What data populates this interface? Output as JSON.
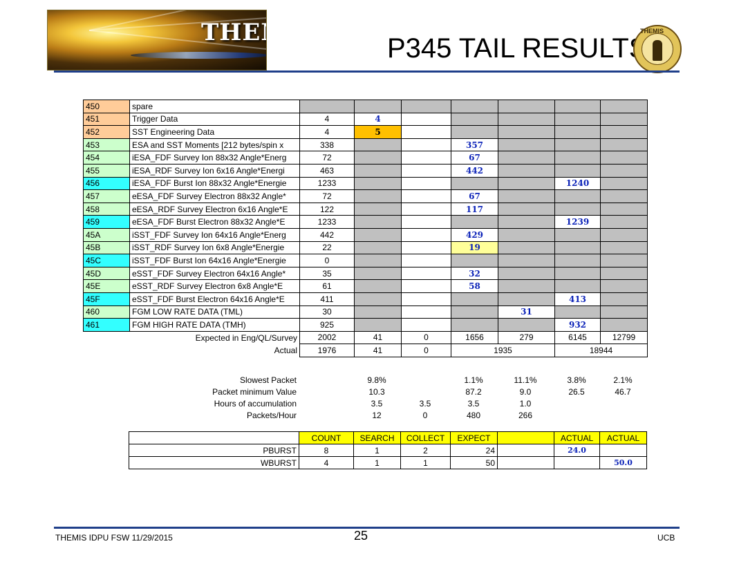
{
  "slide": {
    "logo_text": "THEMIS",
    "title": "P345 TAIL RESULTS",
    "seal_text": "THEMIS",
    "footer_left": "THEMIS IDPU FSW 11/29/2015",
    "page_number": "25",
    "footer_right": "UCB"
  },
  "colors": {
    "id_orange": "#ffcc99",
    "id_green": "#ccffcc",
    "id_cyan": "#33ffff",
    "gray_cell": "#c0c0c0",
    "value_blue": "#0b22b8",
    "highlight_gold": "#ffc000",
    "highlight_light_yellow": "#ffff99",
    "header_yellow": "#ffff00",
    "rule_blue": "#1f3f8a"
  },
  "packet_rows": [
    {
      "id": "450",
      "desc": "spare",
      "expected": "",
      "c1": "",
      "c2": "",
      "c3": "",
      "c4": "",
      "c5": "",
      "c6": ""
    },
    {
      "id": "451",
      "desc": "Trigger Data",
      "expected": "4",
      "c1": "4",
      "c2": "",
      "c3": "",
      "c4": "",
      "c5": "",
      "c6": ""
    },
    {
      "id": "452",
      "desc": "SST Engineering Data",
      "expected": "4",
      "c1": "5",
      "c2": "",
      "c3": "",
      "c4": "",
      "c5": "",
      "c6": ""
    },
    {
      "id": "453",
      "desc": "ESA and SST Moments [212 bytes/spin x",
      "expected": "338",
      "c1": "",
      "c2": "",
      "c3": "357",
      "c4": "",
      "c5": "",
      "c6": ""
    },
    {
      "id": "454",
      "desc": "iESA_FDF Survey Ion 88x32 Angle*Energ",
      "expected": "72",
      "c1": "",
      "c2": "",
      "c3": "67",
      "c4": "",
      "c5": "",
      "c6": ""
    },
    {
      "id": "455",
      "desc": "iESA_RDF Survey Ion 6x16 Angle*Energi",
      "expected": "463",
      "c1": "",
      "c2": "",
      "c3": "442",
      "c4": "",
      "c5": "",
      "c6": ""
    },
    {
      "id": "456",
      "desc": "iESA_FDF Burst Ion 88x32 Angle*Energie",
      "expected": "1233",
      "c1": "",
      "c2": "",
      "c3": "",
      "c4": "",
      "c5": "1240",
      "c6": ""
    },
    {
      "id": "457",
      "desc": "eESA_FDF Survey Electron 88x32 Angle*",
      "expected": "72",
      "c1": "",
      "c2": "",
      "c3": "67",
      "c4": "",
      "c5": "",
      "c6": ""
    },
    {
      "id": "458",
      "desc": "eESA_RDF Survey Electron 6x16 Angle*E",
      "expected": "122",
      "c1": "",
      "c2": "",
      "c3": "117",
      "c4": "",
      "c5": "",
      "c6": ""
    },
    {
      "id": "459",
      "desc": "eESA_FDF Burst Electron 88x32 Angle*E",
      "expected": "1233",
      "c1": "",
      "c2": "",
      "c3": "",
      "c4": "",
      "c5": "1239",
      "c6": ""
    },
    {
      "id": "45A",
      "desc": "iSST_FDF Survey Ion 64x16 Angle*Energ",
      "expected": "442",
      "c1": "",
      "c2": "",
      "c3": "429",
      "c4": "",
      "c5": "",
      "c6": ""
    },
    {
      "id": "45B",
      "desc": "iSST_RDF Survey Ion 6x8 Angle*Energie",
      "expected": "22",
      "c1": "",
      "c2": "",
      "c3": "19",
      "c4": "",
      "c5": "",
      "c6": ""
    },
    {
      "id": "45C",
      "desc": "iSST_FDF Burst Ion 64x16 Angle*Energie",
      "expected": "0",
      "c1": "",
      "c2": "",
      "c3": "",
      "c4": "",
      "c5": "",
      "c6": ""
    },
    {
      "id": "45D",
      "desc": "eSST_FDF Survey Electron 64x16 Angle*",
      "expected": "35",
      "c1": "",
      "c2": "",
      "c3": "32",
      "c4": "",
      "c5": "",
      "c6": ""
    },
    {
      "id": "45E",
      "desc": "eSST_RDF Survey Electron 6x8 Angle*E",
      "expected": "61",
      "c1": "",
      "c2": "",
      "c3": "58",
      "c4": "",
      "c5": "",
      "c6": ""
    },
    {
      "id": "45F",
      "desc": "eSST_FDF Burst Electron 64x16 Angle*E",
      "expected": "411",
      "c1": "",
      "c2": "",
      "c3": "",
      "c4": "",
      "c5": "413",
      "c6": ""
    },
    {
      "id": "460",
      "desc": "FGM LOW RATE DATA (TML)",
      "expected": "30",
      "c1": "",
      "c2": "",
      "c3": "",
      "c4": "31",
      "c5": "",
      "c6": ""
    },
    {
      "id": "461",
      "desc": "FGM HIGH RATE DATA (TMH)",
      "expected": "925",
      "c1": "",
      "c2": "",
      "c3": "",
      "c4": "",
      "c5": "932",
      "c6": ""
    }
  ],
  "summary": {
    "expected_label": "Expected in Eng/QL/Survey",
    "expected": [
      "2002",
      "41",
      "0",
      "1656",
      "279",
      "6145",
      "12799"
    ],
    "actual_label": "Actual",
    "actual": [
      "1976",
      "41",
      "0",
      "1935",
      "18944"
    ]
  },
  "stats": [
    {
      "label": "Slowest Packet",
      "values": [
        "9.8%",
        "",
        "1.1%",
        "11.1%",
        "3.8%",
        "2.1%"
      ]
    },
    {
      "label": "Packet minimum Value",
      "values": [
        "10.3",
        "",
        "87.2",
        "9.0",
        "26.5",
        "46.7"
      ]
    },
    {
      "label": "Hours of accumulation",
      "values": [
        "3.5",
        "3.5",
        "3.5",
        "1.0",
        "",
        ""
      ]
    },
    {
      "label": "Packets/Hour",
      "values": [
        "12",
        "0",
        "480",
        "266",
        "",
        ""
      ]
    }
  ],
  "burst": {
    "headers": [
      "COUNT",
      "SEARCH",
      "COLLECT",
      "EXPECT",
      "",
      "ACTUAL",
      "ACTUAL"
    ],
    "rows": [
      {
        "label": "PBURST",
        "count": "8",
        "search": "1",
        "collect": "2",
        "expect": "24",
        "actual1": "24.0",
        "actual2": ""
      },
      {
        "label": "WBURST",
        "count": "4",
        "search": "1",
        "collect": "1",
        "expect": "50",
        "actual1": "",
        "actual2": "50.0"
      }
    ]
  }
}
